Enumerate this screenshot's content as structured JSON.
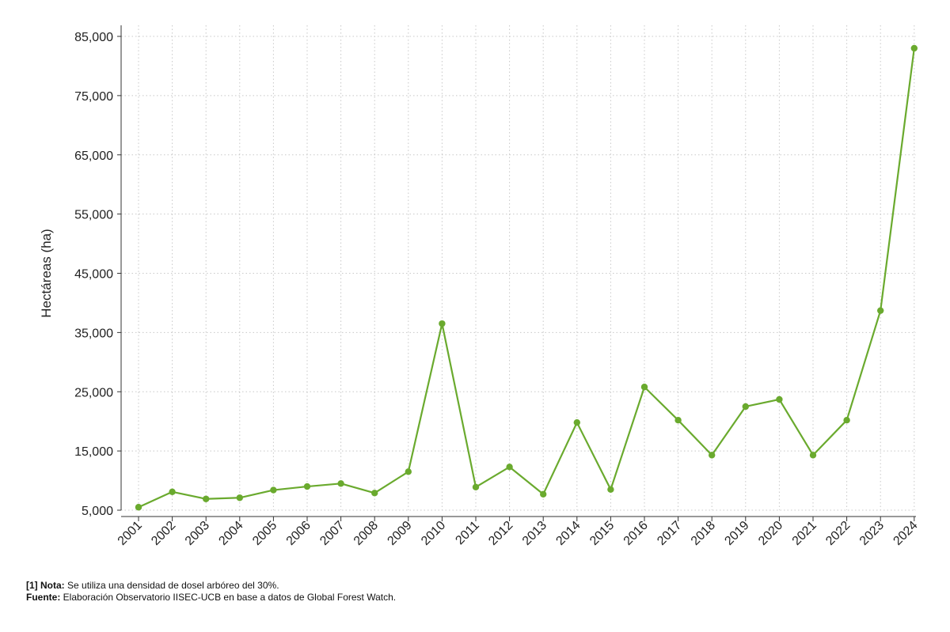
{
  "chart_data": {
    "type": "line",
    "ylabel": "Hectáreas (ha)",
    "xlabel": "",
    "x": [
      "2001",
      "2002",
      "2003",
      "2004",
      "2005",
      "2006",
      "2007",
      "2008",
      "2009",
      "2010",
      "2011",
      "2012",
      "2013",
      "2014",
      "2015",
      "2016",
      "2017",
      "2018",
      "2019",
      "2020",
      "2021",
      "2022",
      "2023",
      "2024"
    ],
    "series": [
      {
        "values": [
          5500,
          8100,
          6900,
          7100,
          8400,
          9000,
          9500,
          7900,
          11500,
          36500,
          8900,
          12300,
          7700,
          19800,
          8500,
          25800,
          20200,
          14300,
          22500,
          23700,
          14300,
          20200,
          38700,
          83000
        ]
      }
    ],
    "ylim": [
      5000,
      85000
    ],
    "yticks": [
      5000,
      15000,
      25000,
      35000,
      45000,
      55000,
      65000,
      75000,
      85000
    ],
    "ytick_labels": [
      "5,000",
      "15,000",
      "25,000",
      "35,000",
      "45,000",
      "55,000",
      "65,000",
      "75,000",
      "85,000"
    ],
    "grid": true,
    "line_color": "#6aaa2e"
  },
  "notes": {
    "note_label": "[1] Nota:",
    "note_text": " Se utiliza una densidad de dosel arbóreo del 30%.",
    "source_label": "Fuente:",
    "source_text": " Elaboración Observatorio IISEC-UCB en base a datos de Global Forest Watch."
  }
}
